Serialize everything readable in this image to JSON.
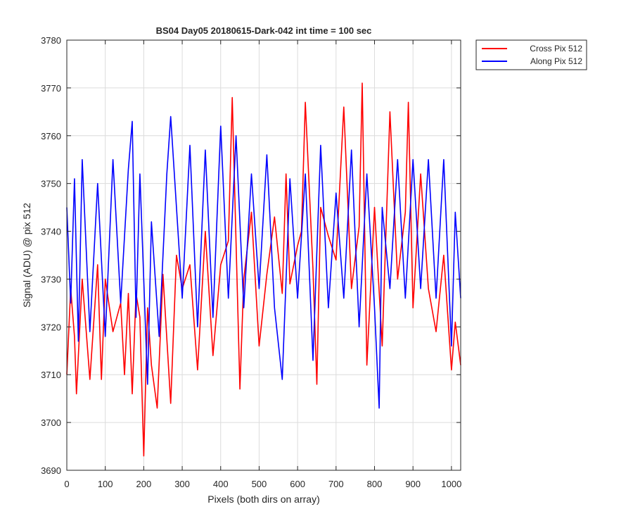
{
  "chart_data": {
    "type": "line",
    "title": "BS04 Day05 20180615-Dark-042 int time = 100 sec",
    "xlabel": "Pixels (both dirs on array)",
    "ylabel": "Signal (ADU) @ pix 512",
    "xlim": [
      0,
      1024
    ],
    "ylim": [
      3690,
      3780
    ],
    "xticks": [
      0,
      100,
      200,
      300,
      400,
      500,
      600,
      700,
      800,
      900,
      1000
    ],
    "yticks": [
      3690,
      3700,
      3710,
      3720,
      3730,
      3740,
      3750,
      3760,
      3770,
      3780
    ],
    "grid": true,
    "legend_position": "outside-top-right",
    "series": [
      {
        "name": "Cross Pix 512",
        "color": "#ff0000",
        "x": [
          0,
          10,
          20,
          25,
          40,
          60,
          80,
          90,
          100,
          120,
          140,
          150,
          160,
          170,
          180,
          190,
          200,
          210,
          220,
          235,
          250,
          270,
          285,
          300,
          320,
          340,
          360,
          380,
          400,
          420,
          430,
          450,
          460,
          480,
          500,
          520,
          540,
          560,
          570,
          580,
          600,
          610,
          620,
          640,
          650,
          660,
          680,
          700,
          720,
          740,
          760,
          768,
          780,
          800,
          820,
          840,
          860,
          880,
          888,
          900,
          920,
          940,
          960,
          980,
          1000,
          1010,
          1024
        ],
        "y": [
          3710,
          3728,
          3718,
          3706,
          3730,
          3709,
          3733,
          3709,
          3730,
          3719,
          3725,
          3710,
          3727,
          3706,
          3727,
          3722,
          3693,
          3724,
          3712,
          3703,
          3731,
          3704,
          3735,
          3728,
          3733,
          3711,
          3740,
          3714,
          3733,
          3738,
          3768,
          3707,
          3730,
          3744,
          3716,
          3731,
          3743,
          3727,
          3752,
          3729,
          3737,
          3740,
          3767,
          3732,
          3708,
          3745,
          3739,
          3734,
          3766,
          3728,
          3741,
          3771,
          3712,
          3745,
          3716,
          3765,
          3730,
          3744,
          3767,
          3724,
          3752,
          3728,
          3719,
          3735,
          3711,
          3721,
          3712
        ]
      },
      {
        "name": "Along Pix 512",
        "color": "#0000ff",
        "x": [
          0,
          10,
          20,
          30,
          40,
          60,
          80,
          100,
          120,
          140,
          160,
          170,
          180,
          190,
          210,
          220,
          240,
          260,
          270,
          300,
          320,
          340,
          360,
          380,
          400,
          420,
          440,
          460,
          480,
          500,
          520,
          540,
          560,
          580,
          600,
          620,
          640,
          660,
          680,
          700,
          720,
          740,
          760,
          780,
          800,
          812,
          820,
          840,
          860,
          880,
          900,
          920,
          940,
          960,
          980,
          1000,
          1010,
          1024
        ],
        "y": [
          3745,
          3725,
          3751,
          3717,
          3755,
          3719,
          3750,
          3718,
          3755,
          3725,
          3753,
          3763,
          3722,
          3752,
          3708,
          3742,
          3718,
          3752,
          3764,
          3726,
          3758,
          3720,
          3757,
          3722,
          3762,
          3726,
          3760,
          3724,
          3752,
          3728,
          3756,
          3724,
          3709,
          3751,
          3726,
          3752,
          3713,
          3758,
          3724,
          3748,
          3726,
          3757,
          3720,
          3752,
          3724,
          3703,
          3745,
          3728,
          3755,
          3726,
          3755,
          3728,
          3755,
          3726,
          3755,
          3716,
          3744,
          3726
        ]
      }
    ]
  }
}
